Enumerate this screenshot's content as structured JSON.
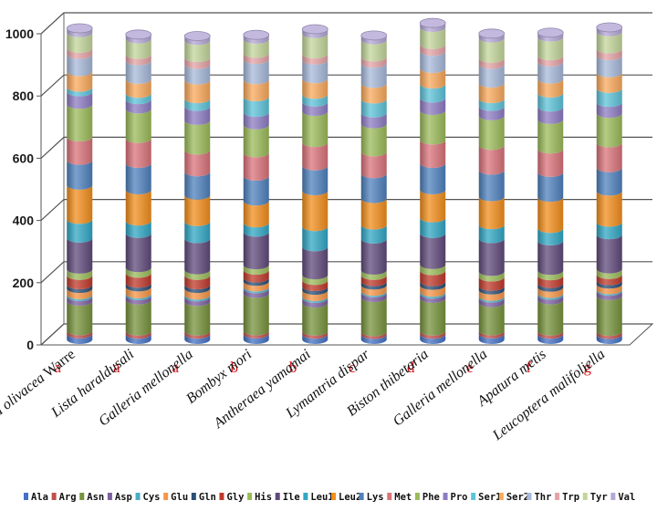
{
  "chart_data": {
    "type": "bar",
    "stacked": true,
    "three_d": true,
    "title": "",
    "xlabel": "",
    "ylabel": "",
    "ylim": [
      0,
      1000
    ],
    "yticks": [
      "0",
      "200",
      "400",
      "600",
      "800",
      "1000"
    ],
    "grid": true,
    "legend_position": "bottom",
    "categories": [
      {
        "name": "Orthaga olivacea",
        "suffix": " Warre",
        "group": "a"
      },
      {
        "name": "Lista haraldusali",
        "suffix": "",
        "group": "a"
      },
      {
        "name": "Galleria mellonella",
        "suffix": "",
        "group": "a"
      },
      {
        "name": "Bombyx mori",
        "suffix": "",
        "group": "b"
      },
      {
        "name": "Antheraea yamamai",
        "suffix": "",
        "group": "b"
      },
      {
        "name": "Lymantria dispar",
        "suffix": "",
        "group": "c"
      },
      {
        "name": "Biston thibetaria",
        "suffix": "",
        "group": "d"
      },
      {
        "name": "Galleria mellonella",
        "suffix": "",
        "group": "e"
      },
      {
        "name": "Apatura metis",
        "suffix": "",
        "group": "f"
      },
      {
        "name": "Leucoptera malifoliella",
        "suffix": "",
        "group": "g"
      }
    ],
    "series": [
      {
        "name": "Ala",
        "color": "#4472c4",
        "values": [
          18,
          17,
          17,
          18,
          17,
          16,
          17,
          18,
          17,
          16
        ]
      },
      {
        "name": "Arg",
        "color": "#c0504d",
        "values": [
          10,
          10,
          10,
          10,
          10,
          9,
          10,
          10,
          10,
          10
        ]
      },
      {
        "name": "Asn",
        "color": "#77933c",
        "values": [
          95,
          100,
          95,
          120,
          90,
          110,
          105,
          90,
          100,
          115
        ]
      },
      {
        "name": "Asp",
        "color": "#7d60a0",
        "values": [
          15,
          14,
          15,
          15,
          15,
          15,
          14,
          15,
          15,
          14
        ]
      },
      {
        "name": "Cys",
        "color": "#4bacc6",
        "values": [
          6,
          6,
          6,
          6,
          6,
          5,
          6,
          6,
          6,
          5
        ]
      },
      {
        "name": "Glu",
        "color": "#f79646",
        "values": [
          20,
          22,
          21,
          18,
          20,
          20,
          22,
          20,
          20,
          18
        ]
      },
      {
        "name": "Gln",
        "color": "#2c4d75",
        "values": [
          12,
          12,
          12,
          11,
          12,
          11,
          12,
          12,
          12,
          11
        ]
      },
      {
        "name": "Gly",
        "color": "#c0392b",
        "values": [
          30,
          32,
          30,
          25,
          20,
          20,
          35,
          30,
          25,
          20
        ]
      },
      {
        "name": "His",
        "color": "#9bbb59",
        "values": [
          20,
          18,
          18,
          17,
          18,
          17,
          20,
          18,
          17,
          18
        ]
      },
      {
        "name": "Ile",
        "color": "#604a7b",
        "values": [
          100,
          110,
          100,
          105,
          90,
          100,
          100,
          105,
          95,
          110
        ]
      },
      {
        "name": "Leu1",
        "color": "#31a7c4",
        "values": [
          60,
          40,
          55,
          30,
          65,
          45,
          50,
          45,
          40,
          40
        ]
      },
      {
        "name": "Leu2",
        "color": "#f28e1c",
        "values": [
          110,
          100,
          85,
          70,
          115,
          85,
          90,
          90,
          100,
          100
        ]
      },
      {
        "name": "Lys",
        "color": "#4f81bd",
        "values": [
          80,
          85,
          75,
          80,
          80,
          80,
          85,
          85,
          80,
          75
        ]
      },
      {
        "name": "Met",
        "color": "#d9737a",
        "values": [
          75,
          80,
          70,
          75,
          75,
          70,
          75,
          80,
          75,
          80
        ]
      },
      {
        "name": "Phe",
        "color": "#9bbb59",
        "values": [
          105,
          95,
          95,
          90,
          100,
          90,
          95,
          95,
          95,
          95
        ]
      },
      {
        "name": "Pro",
        "color": "#8e7cc3",
        "values": [
          40,
          30,
          45,
          40,
          30,
          35,
          40,
          30,
          40,
          35
        ]
      },
      {
        "name": "Ser1",
        "color": "#5dc3d9",
        "values": [
          15,
          20,
          25,
          50,
          25,
          45,
          45,
          25,
          45,
          45
        ]
      },
      {
        "name": "Ser2",
        "color": "#f9a95c",
        "values": [
          50,
          45,
          60,
          55,
          50,
          50,
          50,
          50,
          45,
          50
        ]
      },
      {
        "name": "Thr",
        "color": "#a7b9da",
        "values": [
          55,
          60,
          50,
          65,
          60,
          65,
          55,
          60,
          55,
          55
        ]
      },
      {
        "name": "Trp",
        "color": "#e4a3a6",
        "values": [
          20,
          20,
          22,
          20,
          20,
          20,
          22,
          20,
          20,
          22
        ]
      },
      {
        "name": "Tyr",
        "color": "#c3d69b",
        "values": [
          50,
          50,
          55,
          45,
          65,
          55,
          55,
          65,
          60,
          55
        ]
      },
      {
        "name": "Val",
        "color": "#b4a7d6",
        "values": [
          14,
          14,
          14,
          14,
          14,
          14,
          14,
          14,
          14,
          14
        ]
      }
    ]
  }
}
